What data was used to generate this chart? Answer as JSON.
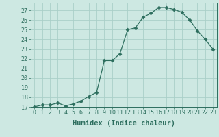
{
  "x": [
    0,
    1,
    2,
    3,
    4,
    5,
    6,
    7,
    8,
    9,
    10,
    11,
    12,
    13,
    14,
    15,
    16,
    17,
    18,
    19,
    20,
    21,
    22,
    23
  ],
  "y": [
    17.0,
    17.2,
    17.2,
    17.4,
    17.1,
    17.3,
    17.6,
    18.1,
    18.5,
    21.8,
    21.8,
    22.5,
    25.0,
    25.2,
    26.3,
    26.7,
    27.3,
    27.3,
    27.1,
    26.8,
    26.0,
    24.9,
    24.0,
    23.0
  ],
  "line_color": "#2d6e5e",
  "marker": "D",
  "marker_size": 2.5,
  "bg_color": "#cde8e2",
  "grid_color": "#aacfc8",
  "xlabel": "Humidex (Indice chaleur)",
  "ylim": [
    17,
    27.8
  ],
  "xlim": [
    -0.5,
    23.5
  ],
  "yticks": [
    17,
    18,
    19,
    20,
    21,
    22,
    23,
    24,
    25,
    26,
    27
  ],
  "xticks": [
    0,
    1,
    2,
    3,
    4,
    5,
    6,
    7,
    8,
    9,
    10,
    11,
    12,
    13,
    14,
    15,
    16,
    17,
    18,
    19,
    20,
    21,
    22,
    23
  ],
  "tick_label_color": "#2d6e5e",
  "label_fontsize": 6,
  "xlabel_fontsize": 7.5
}
